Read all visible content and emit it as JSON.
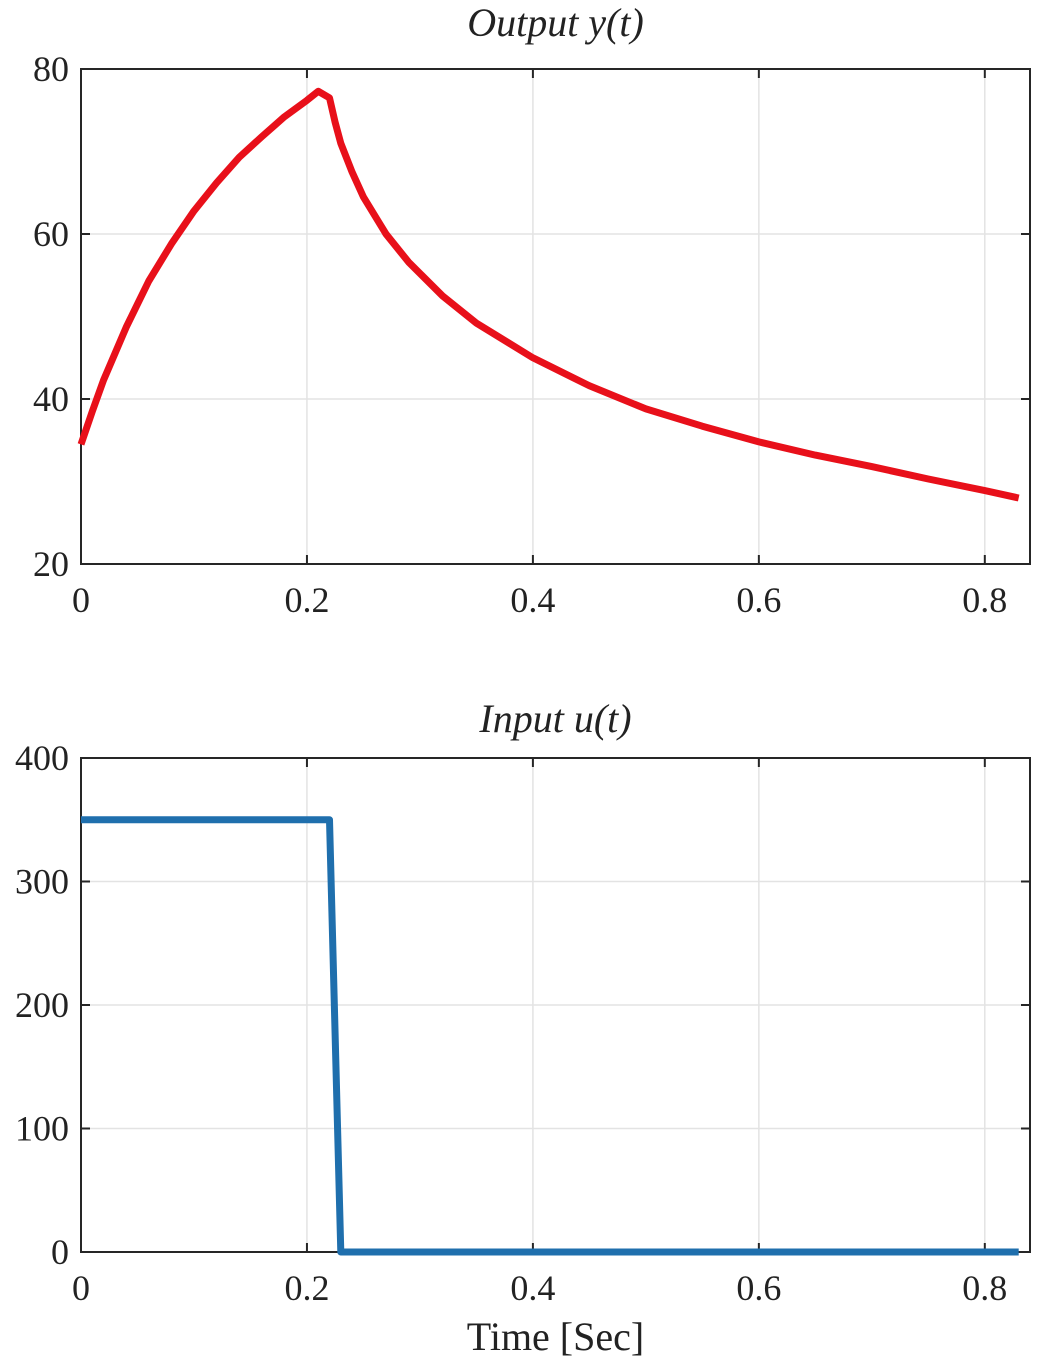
{
  "chart_data": [
    {
      "type": "line",
      "title": "Output y(t)",
      "xlabel": "",
      "ylabel": "",
      "xlim": [
        0,
        0.84
      ],
      "ylim": [
        20,
        80
      ],
      "xticks": [
        0,
        0.2,
        0.4,
        0.6,
        0.8
      ],
      "xtick_labels": [
        "0",
        "0.2",
        "0.4",
        "0.6",
        "0.8"
      ],
      "yticks": [
        20,
        40,
        60,
        80
      ],
      "ytick_labels": [
        "20",
        "40",
        "60",
        "80"
      ],
      "grid": true,
      "series": [
        {
          "color": "#e8101a",
          "x": [
            0,
            0.01,
            0.02,
            0.03,
            0.04,
            0.05,
            0.06,
            0.08,
            0.1,
            0.12,
            0.14,
            0.16,
            0.18,
            0.2,
            0.21,
            0.22,
            0.225,
            0.23,
            0.24,
            0.25,
            0.27,
            0.29,
            0.32,
            0.35,
            0.4,
            0.45,
            0.5,
            0.55,
            0.6,
            0.65,
            0.7,
            0.75,
            0.8,
            0.83
          ],
          "y": [
            34.5,
            38.5,
            42.3,
            45.5,
            48.7,
            51.5,
            54.3,
            58.8,
            62.8,
            66.2,
            69.3,
            71.8,
            74.2,
            76.2,
            77.3,
            76.5,
            73.5,
            71.0,
            67.5,
            64.5,
            60.0,
            56.6,
            52.5,
            49.2,
            45.0,
            41.6,
            38.8,
            36.7,
            34.8,
            33.2,
            31.8,
            30.3,
            28.9,
            28.0
          ]
        }
      ]
    },
    {
      "type": "line",
      "title": "Input u(t)",
      "xlabel": "Time [Sec]",
      "ylabel": "",
      "xlim": [
        0,
        0.84
      ],
      "ylim": [
        0,
        400
      ],
      "xticks": [
        0,
        0.2,
        0.4,
        0.6,
        0.8
      ],
      "xtick_labels": [
        "0",
        "0.2",
        "0.4",
        "0.6",
        "0.8"
      ],
      "yticks": [
        0,
        100,
        200,
        300,
        400
      ],
      "ytick_labels": [
        "0",
        "100",
        "200",
        "300",
        "400"
      ],
      "grid": true,
      "series": [
        {
          "color": "#1f6fad",
          "x": [
            0,
            0.22,
            0.23,
            0.83
          ],
          "y": [
            350,
            350,
            0,
            0
          ]
        }
      ]
    }
  ]
}
